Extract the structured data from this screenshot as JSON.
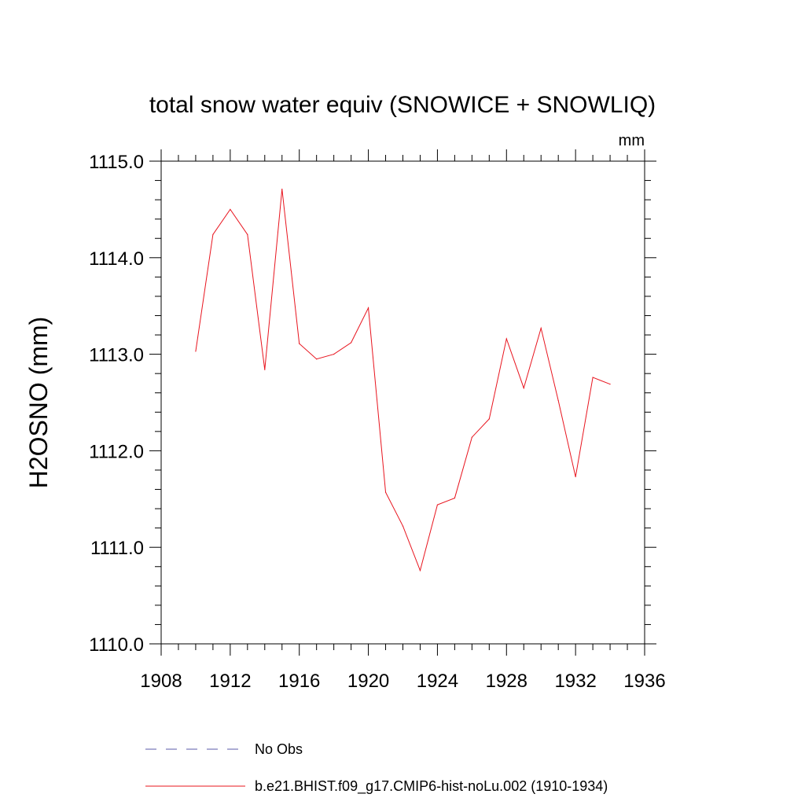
{
  "chart_data": {
    "type": "line",
    "title": "total snow water equiv (SNOWICE + SNOWLIQ)",
    "units": "mm",
    "xlabel": "",
    "ylabel": "H2OSNO  (mm)",
    "xlim": [
      1908,
      1936
    ],
    "ylim": [
      1110.0,
      1115.0
    ],
    "x_ticks": [
      "1908",
      "1912",
      "1916",
      "1920",
      "1924",
      "1928",
      "1932",
      "1936"
    ],
    "y_ticks": [
      "1110.0",
      "1111.0",
      "1112.0",
      "1113.0",
      "1114.0",
      "1115.0"
    ],
    "grid": false,
    "legend_position": "bottom",
    "series": [
      {
        "name": "No Obs",
        "style": "dashed",
        "color": "#5a5aa8",
        "x": [],
        "values": []
      },
      {
        "name": "b.e21.BHIST.f09_g17.CMIP6-hist-noLu.002 (1910-1934)",
        "style": "solid",
        "color": "#e8141e",
        "x": [
          1910,
          1911,
          1912,
          1913,
          1914,
          1915,
          1916,
          1917,
          1918,
          1919,
          1920,
          1921,
          1922,
          1923,
          1924,
          1925,
          1926,
          1927,
          1928,
          1929,
          1930,
          1931,
          1932,
          1933,
          1934
        ],
        "values": [
          1113.03,
          1114.24,
          1114.5,
          1114.24,
          1112.84,
          1114.71,
          1113.11,
          1112.95,
          1113.0,
          1113.12,
          1113.48,
          1111.57,
          1111.22,
          1110.76,
          1111.44,
          1111.51,
          1112.14,
          1112.33,
          1113.16,
          1112.65,
          1113.27,
          1112.52,
          1111.73,
          1112.76,
          1112.69
        ]
      }
    ]
  }
}
